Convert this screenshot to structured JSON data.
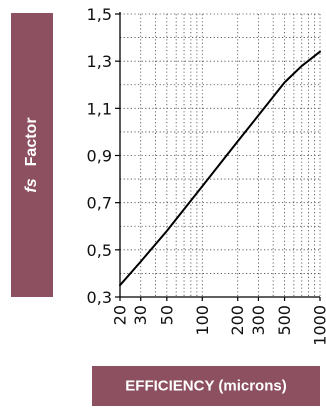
{
  "chart_data": {
    "type": "line",
    "ylabel_symbol": "fs",
    "ylabel_text": "Factor",
    "xlabel": "EFFICIENCY (microns)",
    "x_scale": "log",
    "xlim": [
      20,
      1000
    ],
    "ylim": [
      0.3,
      1.5
    ],
    "grid": true,
    "x_ticks": [
      20,
      30,
      50,
      100,
      200,
      300,
      500,
      1000
    ],
    "y_ticks": [
      "0,3",
      "0,5",
      "0,7",
      "0,9",
      "1,1",
      "1,3",
      "1,5"
    ],
    "y_tick_values": [
      0.3,
      0.5,
      0.7,
      0.9,
      1.1,
      1.3,
      1.5
    ],
    "series": [
      {
        "x": [
          20,
          30,
          50,
          100,
          200,
          300,
          500,
          700,
          1000
        ],
        "y": [
          0.35,
          0.45,
          0.58,
          0.77,
          0.96,
          1.07,
          1.21,
          1.28,
          1.34
        ]
      }
    ],
    "line_color": "#000000",
    "panel_color": "#8d5060"
  }
}
